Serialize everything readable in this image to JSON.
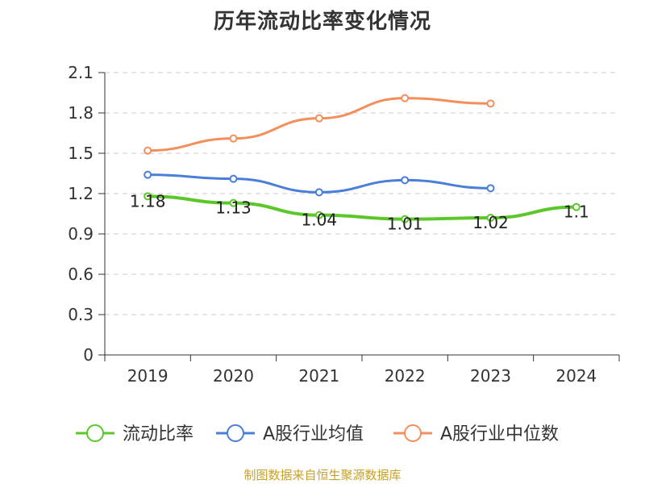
{
  "chart_data": {
    "type": "line",
    "title": "历年流动比率变化情况",
    "source": "制图数据来自恒生聚源数据库",
    "categories": [
      "2019",
      "2020",
      "2021",
      "2022",
      "2023",
      "2024"
    ],
    "ylim": [
      0,
      2.1
    ],
    "yticks": [
      "0",
      "0.3",
      "0.6",
      "0.9",
      "1.2",
      "1.5",
      "1.8",
      "2.1"
    ],
    "grid": true,
    "legend_position": "bottom",
    "series": [
      {
        "name": "流动比率",
        "color": "#5cc72a",
        "values": [
          1.18,
          1.13,
          1.04,
          1.01,
          1.02,
          1.1
        ],
        "labels": [
          "1.18",
          "1.13",
          "1.04",
          "1.01",
          "1.02",
          "1.1"
        ]
      },
      {
        "name": "A股行业均值",
        "color": "#4a7fd9",
        "values": [
          1.34,
          1.31,
          1.21,
          1.3,
          1.24,
          null
        ]
      },
      {
        "name": "A股行业中位数",
        "color": "#f48f5c",
        "values": [
          1.52,
          1.61,
          1.76,
          1.91,
          1.87,
          null
        ]
      }
    ]
  }
}
